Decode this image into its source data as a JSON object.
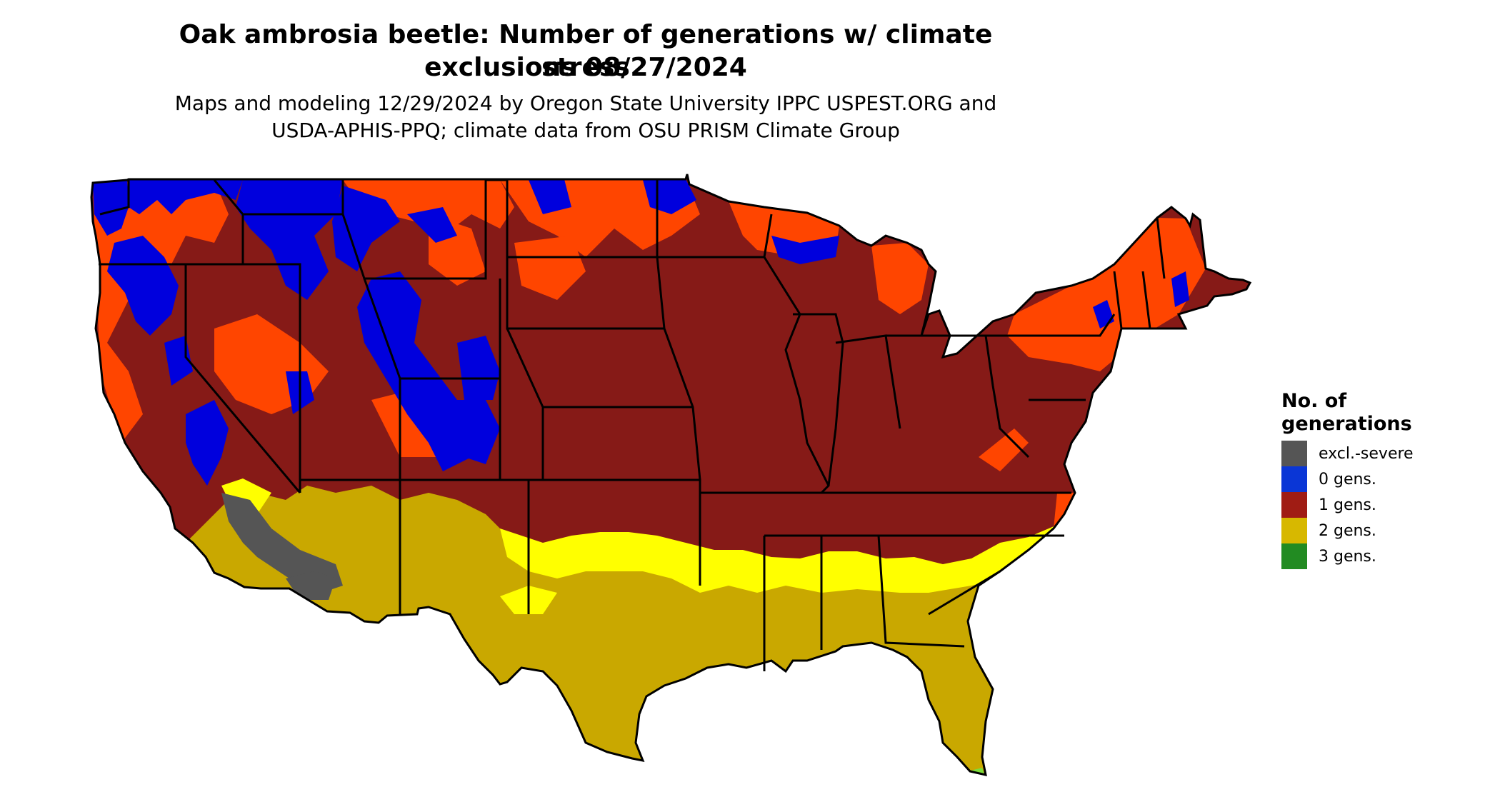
{
  "title": {
    "line1": "Oak ambrosia beetle: Number of generations w/ climate stress",
    "line2": "exclusions 08/27/2024"
  },
  "subtitle": {
    "line1": "Maps and modeling 12/29/2024 by Oregon State University IPPC USPEST.ORG and",
    "line2": "USDA-APHIS-PPQ; climate data from OSU PRISM Climate Group"
  },
  "legend": {
    "title_line1": "No. of",
    "title_line2": "generations",
    "items": [
      {
        "label": "excl.-severe",
        "color": "#555555"
      },
      {
        "label": "0 gens.",
        "color": "#0a36d6"
      },
      {
        "label": "1 gens.",
        "color": "#a01c14"
      },
      {
        "label": "2 gens.",
        "color": "#d7b800"
      },
      {
        "label": "3 gens.",
        "color": "#228b22"
      }
    ]
  },
  "map_colors": {
    "one_gen_dark": "#861a17",
    "one_gen_orange": "#ff4500",
    "zero_gen": "#0000dd",
    "two_gen": "#c9a800",
    "two_gen_light": "#ffff00",
    "excluded": "#555555",
    "three_gen": "#7ddc3a",
    "border": "#000000"
  }
}
